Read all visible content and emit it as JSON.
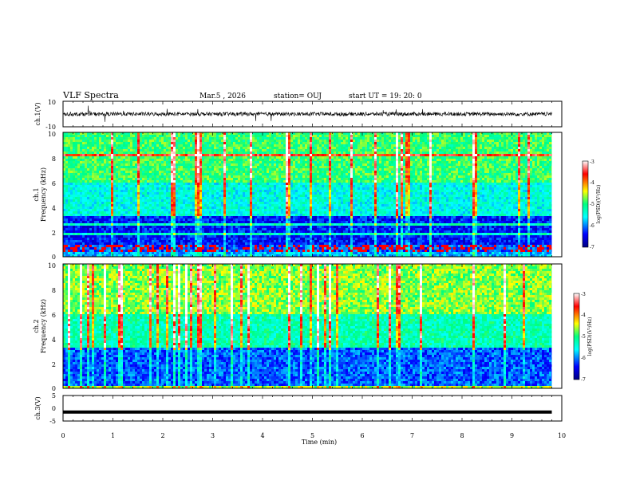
{
  "header": {
    "title": "VLF Spectra",
    "date": "Mar.5  , 2026",
    "station": "station= OUJ",
    "start": "start  UT  =    19: 20: 0"
  },
  "chart_data": [
    {
      "type": "line",
      "name": "ch1-waveform",
      "ylabel": "ch.1(V)",
      "ylim": [
        -10,
        10
      ],
      "yticks": [
        "10",
        "-10"
      ],
      "xlim": [
        0,
        10
      ],
      "baseline": 0
    },
    {
      "type": "heatmap",
      "name": "ch1-spectrogram",
      "ylabel_1": "ch.1",
      "ylabel_2": "Frequency (kHz)",
      "xlim": [
        0,
        10
      ],
      "ylim": [
        0,
        10
      ],
      "yticks": [
        "0",
        "2",
        "4",
        "6",
        "8",
        "10"
      ],
      "colorbar": {
        "label": "log(PSD)(V²/Hz)",
        "ticks": [
          "-3",
          "-4",
          "-5",
          "-6",
          "-7"
        ],
        "range": [
          -7,
          -3
        ]
      }
    },
    {
      "type": "heatmap",
      "name": "ch2-spectrogram",
      "ylabel_1": "ch.2",
      "ylabel_2": "Frequency (kHz)",
      "xlim": [
        0,
        10
      ],
      "ylim": [
        0,
        10
      ],
      "yticks": [
        "0",
        "2",
        "4",
        "6",
        "8",
        "10"
      ],
      "colorbar": {
        "label": "log(PSD)(V²/Hz)",
        "ticks": [
          "-3",
          "-4",
          "-5",
          "-6",
          "-7"
        ],
        "range": [
          -7,
          -3
        ]
      }
    },
    {
      "type": "line",
      "name": "ch3-waveform",
      "ylabel": "ch.3(V)",
      "ylim": [
        -5,
        5
      ],
      "yticks": [
        "5",
        "0",
        "-5"
      ],
      "xlim": [
        0,
        10
      ],
      "baseline": -1.5
    }
  ],
  "xaxis": {
    "label": "Time  (min)",
    "ticks": [
      "0",
      "1",
      "2",
      "3",
      "4",
      "5",
      "6",
      "7",
      "8",
      "9",
      "10"
    ],
    "data_end": 9.8
  }
}
